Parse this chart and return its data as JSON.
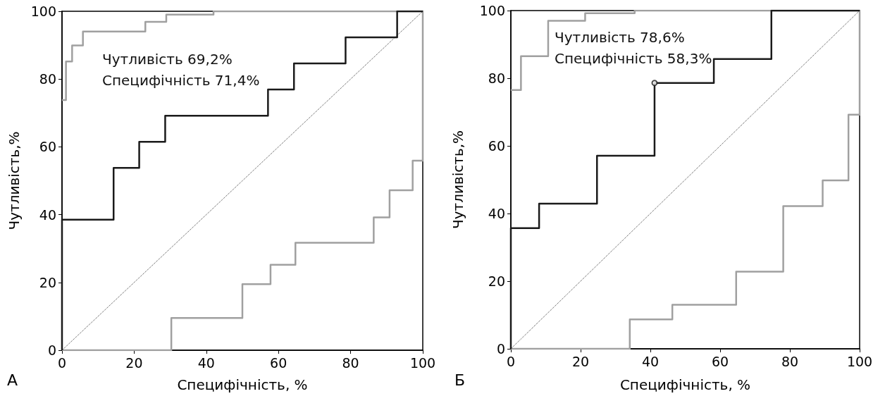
{
  "chart_data": [
    {
      "type": "step",
      "title": "А",
      "xlabel": "Специфічність, %",
      "ylabel": "Чутливість,%",
      "xlim": [
        0,
        100
      ],
      "ylim": [
        0,
        100
      ],
      "xticks": [
        0,
        20,
        40,
        60,
        80,
        100
      ],
      "yticks": [
        0,
        20,
        40,
        60,
        80,
        100
      ],
      "grid": false,
      "annotations": [
        "Чутливість 69,2%",
        "Специфічність 71,4%"
      ],
      "series": [
        {
          "color": "#a0a0a0",
          "x": [
            0,
            1.1,
            2.8,
            5.8,
            23.1,
            28.9,
            42,
            100
          ],
          "values": [
            73.8,
            85.2,
            89.9,
            94,
            96.9,
            99,
            100,
            100
          ]
        },
        {
          "color": "#a0a0a0",
          "x": [
            0,
            30.3,
            50,
            57.8,
            64.7,
            86.4,
            90.8,
            97.2,
            100,
            100
          ],
          "values": [
            0,
            9.5,
            19.5,
            25.2,
            31.7,
            39.2,
            47.2,
            55.9,
            100,
            100
          ]
        },
        {
          "type": "line",
          "line_style": "dotted",
          "color": "#404040",
          "x": [
            0,
            100
          ],
          "values": [
            0,
            100
          ]
        },
        {
          "color": "#1a1a1a",
          "x": [
            0,
            0,
            14.3,
            21.4,
            28.6,
            57.1,
            64.3,
            78.6,
            92.9,
            100
          ],
          "values": [
            0,
            38.5,
            53.8,
            61.5,
            69.2,
            76.9,
            84.6,
            92.3,
            100,
            100
          ]
        }
      ]
    },
    {
      "type": "step",
      "title": "Б",
      "xlabel": "Специфічність, %",
      "ylabel": "Чутливість,%",
      "xlim": [
        0,
        100
      ],
      "ylim": [
        0,
        100
      ],
      "xticks": [
        0,
        20,
        40,
        60,
        80,
        100
      ],
      "yticks": [
        0,
        20,
        40,
        60,
        80,
        100
      ],
      "grid": false,
      "annotations": [
        "Чутливість 78,6%",
        "Специфічність 58,3%"
      ],
      "series": [
        {
          "color": "#a0a0a0",
          "x": [
            0,
            2.9,
            10.7,
            21.3,
            35.5,
            100
          ],
          "values": [
            76.5,
            86.5,
            97,
            99.2,
            100,
            100
          ]
        },
        {
          "color": "#a0a0a0",
          "x": [
            0,
            34.1,
            46.3,
            64.6,
            78.1,
            89.4,
            96.8,
            100,
            100
          ],
          "values": [
            0,
            8.7,
            13,
            22.8,
            42.2,
            49.8,
            69.2,
            100,
            100
          ]
        },
        {
          "type": "line",
          "line_style": "dotted",
          "color": "#404040",
          "x": [
            0,
            100
          ],
          "values": [
            0,
            100
          ]
        },
        {
          "color": "#1a1a1a",
          "x": [
            0,
            0,
            8.1,
            24.7,
            41.2,
            58.2,
            74.7,
            100
          ],
          "values": [
            0,
            35.7,
            42.9,
            57.1,
            78.6,
            85.7,
            100,
            100
          ]
        },
        {
          "type": "scatter",
          "marker": "circle",
          "color": "#1a1a1a",
          "x": [
            41.2
          ],
          "values": [
            78.6
          ]
        }
      ]
    }
  ]
}
